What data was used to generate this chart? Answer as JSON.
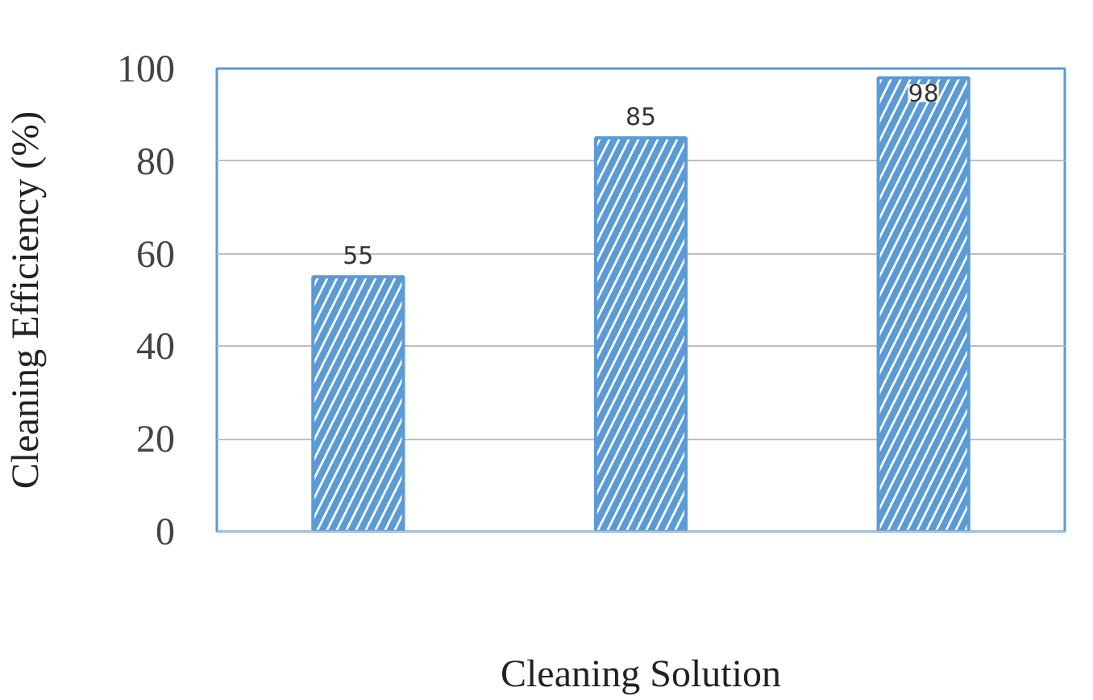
{
  "chart_data": {
    "type": "bar",
    "xlabel": "Cleaning Solution",
    "ylabel": "Cleaning Efficiency (%)",
    "categories": [
      null,
      null,
      null
    ],
    "values": [
      55,
      85,
      98
    ],
    "color": "#5b9bd5",
    "ylim": [
      0,
      100
    ],
    "yticks": [
      0,
      20,
      40,
      60,
      80,
      100
    ],
    "grid": "y",
    "data_labels": true
  }
}
